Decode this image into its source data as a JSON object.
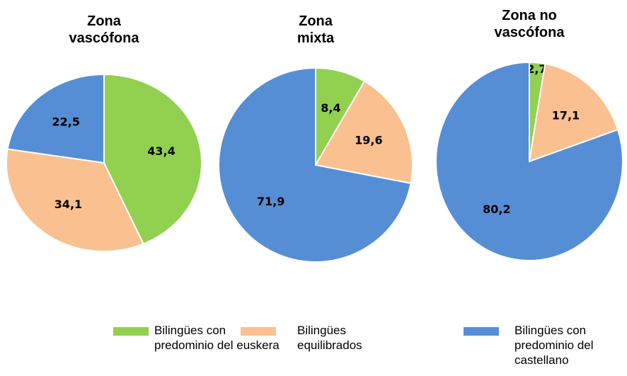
{
  "chart_data": [
    {
      "type": "pie",
      "title": "Zona\nvascófona",
      "values": [
        43.4,
        34.1,
        22.5
      ],
      "value_labels": [
        "43,4",
        "34,1",
        "22,5"
      ]
    },
    {
      "type": "pie",
      "title": "Zona\nmixta",
      "values": [
        8.4,
        19.6,
        71.9
      ],
      "value_labels": [
        "8,4",
        "19,6",
        "71,9"
      ]
    },
    {
      "type": "pie",
      "title": "Zona no\nvascófona",
      "values": [
        2.7,
        17.1,
        80.2
      ],
      "value_labels": [
        "2,7",
        "17,1",
        "80,2"
      ]
    }
  ],
  "legend": [
    {
      "name": "Bilingües con\npredominio del euskera",
      "color": "#92d050"
    },
    {
      "name": "Bilingües\nequilibrados",
      "color": "#fac090"
    },
    {
      "name": "Bilingües con\npredominio del\ncastellano",
      "color": "#558ed5"
    }
  ]
}
